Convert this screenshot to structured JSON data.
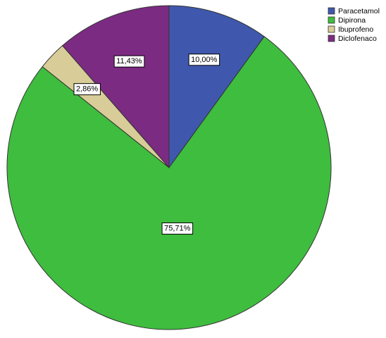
{
  "chart_data": {
    "type": "pie",
    "categories": [
      "Paracetamol",
      "Dipirona",
      "Ibuprofeno",
      "Diclofenaco"
    ],
    "values": [
      10.0,
      75.71,
      2.86,
      11.43
    ],
    "value_labels": [
      "10,00%",
      "75,71%",
      "2,86%",
      "11,43%"
    ],
    "colors": [
      "#3f58ad",
      "#3fbd3f",
      "#d8cd98",
      "#7c2b82"
    ],
    "legend": "top-right"
  }
}
